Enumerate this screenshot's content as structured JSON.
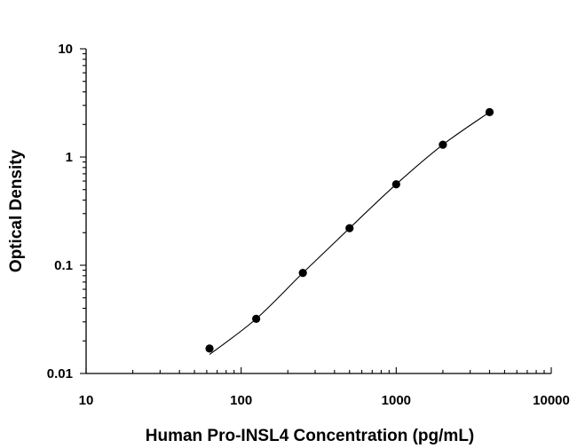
{
  "chart_data": {
    "type": "scatter",
    "x_scale": "log",
    "y_scale": "log",
    "xlabel": "Human Pro-INSL4 Concentration (pg/mL)",
    "ylabel": "Optical Density",
    "xlim": [
      10,
      10000
    ],
    "ylim": [
      0.01,
      10
    ],
    "x_ticks": [
      10,
      100,
      1000,
      10000
    ],
    "x_tick_labels": [
      "10",
      "100",
      "1000",
      "10000"
    ],
    "y_ticks": [
      0.01,
      0.1,
      1,
      10
    ],
    "y_tick_labels": [
      "0.01",
      "0.1",
      "1",
      "10"
    ],
    "grid": false,
    "legend": "none",
    "series": [
      {
        "x": [
          62.5,
          125,
          250,
          500,
          1000,
          2000,
          4000
        ],
        "y": [
          0.017,
          0.032,
          0.085,
          0.22,
          0.56,
          1.3,
          2.6
        ],
        "marker": "filled-circle",
        "fit": "four-parameter logistic curve"
      }
    ]
  }
}
